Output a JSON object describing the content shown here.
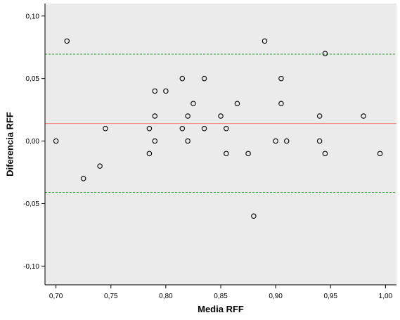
{
  "chart_data": {
    "type": "scatter",
    "xlabel": "Media RFF",
    "ylabel": "Diferencia RFF",
    "xlim": [
      0.69,
      1.01
    ],
    "ylim": [
      -0.115,
      0.11
    ],
    "x_ticks": [
      "0,70",
      "0,75",
      "0,80",
      "0,85",
      "0,90",
      "0,95",
      "1,00"
    ],
    "y_ticks": [
      "0,10",
      "0,05",
      "0,00",
      "-0,05",
      "-0,10"
    ],
    "x_tick_values": [
      0.7,
      0.75,
      0.8,
      0.85,
      0.9,
      0.95,
      1.0
    ],
    "y_tick_values": [
      0.1,
      0.05,
      0.0,
      -0.05,
      -0.1
    ],
    "grid": false,
    "reference_lines": [
      {
        "y": 0.014,
        "style": "solid",
        "color": "#f08070"
      },
      {
        "y": 0.0695,
        "style": "dashed",
        "color": "#2ca02c"
      },
      {
        "y": -0.041,
        "style": "dashed",
        "color": "#2ca02c"
      }
    ],
    "points": [
      {
        "x": 0.7,
        "y": 0.0
      },
      {
        "x": 0.71,
        "y": 0.08
      },
      {
        "x": 0.725,
        "y": -0.03
      },
      {
        "x": 0.74,
        "y": -0.02
      },
      {
        "x": 0.745,
        "y": 0.01
      },
      {
        "x": 0.785,
        "y": 0.01
      },
      {
        "x": 0.785,
        "y": -0.01
      },
      {
        "x": 0.79,
        "y": 0.04
      },
      {
        "x": 0.79,
        "y": 0.02
      },
      {
        "x": 0.79,
        "y": 0.0
      },
      {
        "x": 0.8,
        "y": 0.04
      },
      {
        "x": 0.815,
        "y": 0.05
      },
      {
        "x": 0.815,
        "y": 0.01
      },
      {
        "x": 0.82,
        "y": 0.02
      },
      {
        "x": 0.82,
        "y": 0.0
      },
      {
        "x": 0.825,
        "y": 0.03
      },
      {
        "x": 0.835,
        "y": 0.05
      },
      {
        "x": 0.835,
        "y": 0.01
      },
      {
        "x": 0.85,
        "y": 0.02
      },
      {
        "x": 0.855,
        "y": 0.01
      },
      {
        "x": 0.855,
        "y": -0.01
      },
      {
        "x": 0.865,
        "y": 0.03
      },
      {
        "x": 0.875,
        "y": -0.01
      },
      {
        "x": 0.88,
        "y": -0.06
      },
      {
        "x": 0.89,
        "y": 0.08
      },
      {
        "x": 0.9,
        "y": 0.0
      },
      {
        "x": 0.905,
        "y": 0.05
      },
      {
        "x": 0.905,
        "y": 0.03
      },
      {
        "x": 0.91,
        "y": 0.0
      },
      {
        "x": 0.94,
        "y": 0.02
      },
      {
        "x": 0.94,
        "y": 0.0
      },
      {
        "x": 0.945,
        "y": 0.07
      },
      {
        "x": 0.945,
        "y": -0.01
      },
      {
        "x": 0.98,
        "y": 0.02
      },
      {
        "x": 0.995,
        "y": -0.01
      }
    ],
    "colors": {
      "plot_background": "#ebebeb",
      "point_stroke": "#000000",
      "axis": "#000000"
    }
  }
}
